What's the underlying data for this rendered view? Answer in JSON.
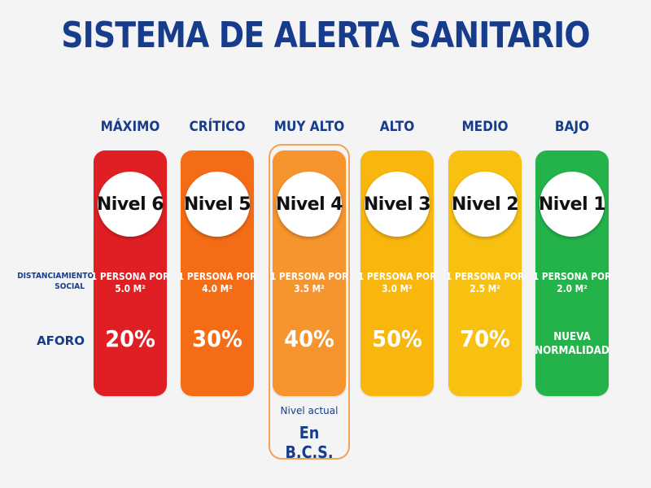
{
  "title": "SISTEMA DE ALERTA SANITARIO",
  "row_labels": {
    "distancing": "DISTANCIAMIENTO SOCIAL",
    "capacity": "AFORO"
  },
  "levels": [
    {
      "name": "MÁXIMO",
      "badge": "Nivel 6",
      "distance_line1": "1 PERSONA POR",
      "distance_line2": "5.0 M²",
      "capacity": "20%",
      "color": "#e01f24"
    },
    {
      "name": "CRÍTICO",
      "badge": "Nivel 5",
      "distance_line1": "1 PERSONA POR",
      "distance_line2": "4.0 M²",
      "capacity": "30%",
      "color": "#f56c16"
    },
    {
      "name": "MUY ALTO",
      "badge": "Nivel 4",
      "distance_line1": "1 PERSONA POR",
      "distance_line2": "3.5 M²",
      "capacity": "40%",
      "color": "#f6942d"
    },
    {
      "name": "ALTO",
      "badge": "Nivel 3",
      "distance_line1": "1 PERSONA POR",
      "distance_line2": "3.0 M²",
      "capacity": "50%",
      "color": "#f9b70e"
    },
    {
      "name": "MEDIO",
      "badge": "Nivel 2",
      "distance_line1": "1 PERSONA POR",
      "distance_line2": "2.5 M²",
      "capacity": "70%",
      "color": "#f8c111"
    },
    {
      "name": "BAJO",
      "badge": "Nivel 1",
      "distance_line1": "1 PERSONA POR",
      "distance_line2": "2.0 M²",
      "capacity_line1": "NUEVA",
      "capacity_line2": "NORMALIDAD",
      "color": "#24b34b"
    }
  ],
  "current": {
    "label": "Nivel actual",
    "value": "En B.C.S."
  }
}
